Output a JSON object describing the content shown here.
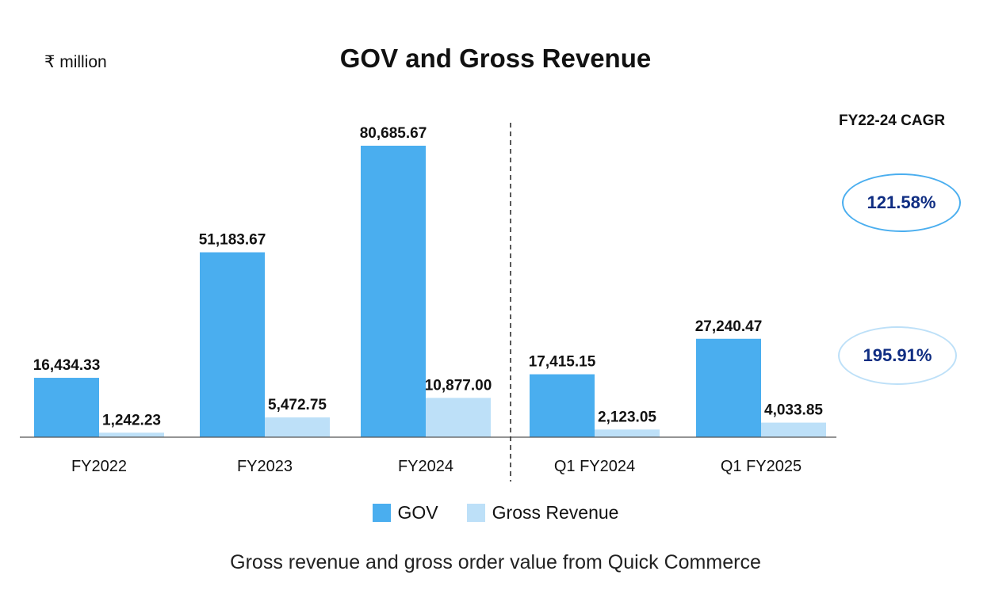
{
  "colors": {
    "gov": "#4aaeef",
    "gross_revenue": "#bde0f8",
    "cagr_text": "#0f2d82"
  },
  "unit_label": "₹ million",
  "cagr": {
    "title": "FY22-24 CAGR",
    "gov": "121.58%",
    "gross_revenue": "195.91%"
  },
  "legend": {
    "gov": "GOV",
    "gross_revenue": "Gross Revenue"
  },
  "caption": "Gross revenue and gross order value from Quick Commerce",
  "chart_data": {
    "type": "bar",
    "title": "GOV and Gross Revenue",
    "xlabel": "",
    "ylabel": "₹ million",
    "ylim": [
      0,
      82000
    ],
    "categories": [
      "FY2022",
      "FY2023",
      "FY2024",
      "Q1 FY2024",
      "Q1 FY2025"
    ],
    "series": [
      {
        "name": "GOV",
        "values": [
          16434.33,
          51183.67,
          80685.67,
          17415.15,
          27240.47
        ],
        "labels": [
          "16,434.33",
          "51,183.67",
          "80,685.67",
          "17,415.15",
          "27,240.47"
        ]
      },
      {
        "name": "Gross Revenue",
        "values": [
          1242.23,
          5472.75,
          10877.0,
          2123.05,
          4033.85
        ],
        "labels": [
          "1,242.23",
          "5,472.75",
          "10,877.00",
          "2,123.05",
          "4,033.85"
        ]
      }
    ],
    "separator_after": "FY2024",
    "grid": false,
    "legend_position": "bottom-center"
  }
}
